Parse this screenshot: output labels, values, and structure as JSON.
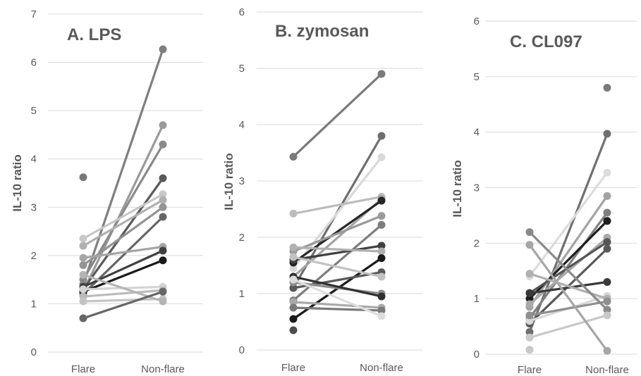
{
  "chart_data": [
    {
      "type": "line",
      "title": "A. LPS",
      "xlabel": "",
      "ylabel": "IL-10 ratio",
      "categories": [
        "Flare",
        "Non-flare"
      ],
      "ylim": [
        0,
        7
      ],
      "yticks": [
        0,
        1,
        2,
        3,
        4,
        5,
        6,
        7
      ],
      "grid": true,
      "series": [
        {
          "values": [
            1.4,
            6.27
          ],
          "color": "#7f7f7f"
        },
        {
          "values": [
            1.25,
            4.7
          ],
          "color": "#9a9a9a"
        },
        {
          "values": [
            1.5,
            4.3
          ],
          "color": "#8a8a8a"
        },
        {
          "values": [
            1.3,
            3.6
          ],
          "color": "#595959"
        },
        {
          "values": [
            2.35,
            3.27
          ],
          "color": "#c8c8c8"
        },
        {
          "values": [
            2.2,
            3.15
          ],
          "color": "#b0b0b0"
        },
        {
          "values": [
            1.8,
            3.0
          ],
          "color": "#949494"
        },
        {
          "values": [
            1.2,
            2.8
          ],
          "color": "#666666"
        },
        {
          "values": [
            1.95,
            2.18
          ],
          "color": "#a6a6a6"
        },
        {
          "values": [
            1.35,
            2.1
          ],
          "color": "#404040"
        },
        {
          "values": [
            1.25,
            1.9
          ],
          "color": "#1a1a1a"
        },
        {
          "values": [
            1.3,
            1.35
          ],
          "color": "#d4d4d4"
        },
        {
          "values": [
            1.15,
            1.28
          ],
          "color": "#bbbbbb"
        },
        {
          "values": [
            1.05,
            1.1
          ],
          "color": "#c4c4c4"
        },
        {
          "values": [
            1.6,
            1.05
          ],
          "color": "#b5b5b5"
        },
        {
          "values": [
            0.7,
            1.25
          ],
          "color": "#666666"
        },
        {
          "values": [
            3.62,
            null
          ],
          "color": "#777777"
        }
      ]
    },
    {
      "type": "line",
      "title": "B. zymosan",
      "xlabel": "",
      "ylabel": "IL-10 ratio",
      "categories": [
        "Flare",
        "Non-flare"
      ],
      "ylim": [
        0,
        6
      ],
      "yticks": [
        0,
        1,
        2,
        3,
        4,
        5,
        6
      ],
      "grid": true,
      "series": [
        {
          "values": [
            1.1,
            3.8
          ],
          "color": "#6e6e6e"
        },
        {
          "values": [
            1.45,
            3.42
          ],
          "color": "#d9d9d9"
        },
        {
          "values": [
            2.42,
            2.72
          ],
          "color": "#bcbcbc"
        },
        {
          "values": [
            1.3,
            2.68
          ],
          "color": "#a3a3a3"
        },
        {
          "values": [
            1.55,
            2.65
          ],
          "color": "#262626"
        },
        {
          "values": [
            1.75,
            2.38
          ],
          "color": "#9a9a9a"
        },
        {
          "values": [
            0.88,
            2.22
          ],
          "color": "#7d7d7d"
        },
        {
          "values": [
            1.6,
            1.85
          ],
          "color": "#404040"
        },
        {
          "values": [
            1.82,
            1.75
          ],
          "color": "#b0b0b0"
        },
        {
          "values": [
            0.55,
            1.63
          ],
          "color": "#1a1a1a"
        },
        {
          "values": [
            1.1,
            1.38
          ],
          "color": "#595959"
        },
        {
          "values": [
            1.65,
            1.3
          ],
          "color": "#c2c2c2"
        },
        {
          "values": [
            1.2,
            1.0
          ],
          "color": "#8c8c8c"
        },
        {
          "values": [
            1.3,
            0.95
          ],
          "color": "#303030"
        },
        {
          "values": [
            0.85,
            0.75
          ],
          "color": "#a9a9a9"
        },
        {
          "values": [
            0.75,
            0.7
          ],
          "color": "#7a7a7a"
        },
        {
          "values": [
            1.25,
            0.6
          ],
          "color": "#dddddd"
        },
        {
          "values": [
            0.35,
            null
          ],
          "color": "#4d4d4d"
        },
        {
          "values": [
            3.43,
            4.9
          ],
          "color": "#7a7a7a"
        }
      ]
    },
    {
      "type": "line",
      "title": "C. CL097",
      "xlabel": "",
      "ylabel": "IL-10 ratio",
      "categories": [
        "Flare",
        "Non-flare"
      ],
      "ylim": [
        0,
        6
      ],
      "yticks": [
        0,
        1,
        2,
        3,
        4,
        5,
        6
      ],
      "grid": true,
      "series": [
        {
          "values": [
            0.4,
            3.97
          ],
          "color": "#707070"
        },
        {
          "values": [
            1.4,
            3.27
          ],
          "color": "#dcdcdc"
        },
        {
          "values": [
            0.85,
            2.85
          ],
          "color": "#a3a3a3"
        },
        {
          "values": [
            0.65,
            2.55
          ],
          "color": "#808080"
        },
        {
          "values": [
            1.0,
            2.4
          ],
          "color": "#1f1f1f"
        },
        {
          "values": [
            0.9,
            2.1
          ],
          "color": "#aaaaaa"
        },
        {
          "values": [
            1.1,
            2.02
          ],
          "color": "#555555"
        },
        {
          "values": [
            0.55,
            1.9
          ],
          "color": "#595959"
        },
        {
          "values": [
            1.1,
            1.3
          ],
          "color": "#3a3a3a"
        },
        {
          "values": [
            0.6,
            1.05
          ],
          "color": "#d9d9d9"
        },
        {
          "values": [
            1.45,
            1.0
          ],
          "color": "#b0b0b0"
        },
        {
          "values": [
            0.7,
            0.95
          ],
          "color": "#8f8f8f"
        },
        {
          "values": [
            2.2,
            0.8
          ],
          "color": "#8a8a8a"
        },
        {
          "values": [
            0.3,
            0.7
          ],
          "color": "#c9c9c9"
        },
        {
          "values": [
            1.97,
            0.06
          ],
          "color": "#a6a6a6"
        },
        {
          "values": [
            0.08,
            null
          ],
          "color": "#c8c8c8"
        },
        {
          "values": [
            null,
            4.8
          ],
          "color": "#7a7a7a"
        }
      ]
    }
  ]
}
